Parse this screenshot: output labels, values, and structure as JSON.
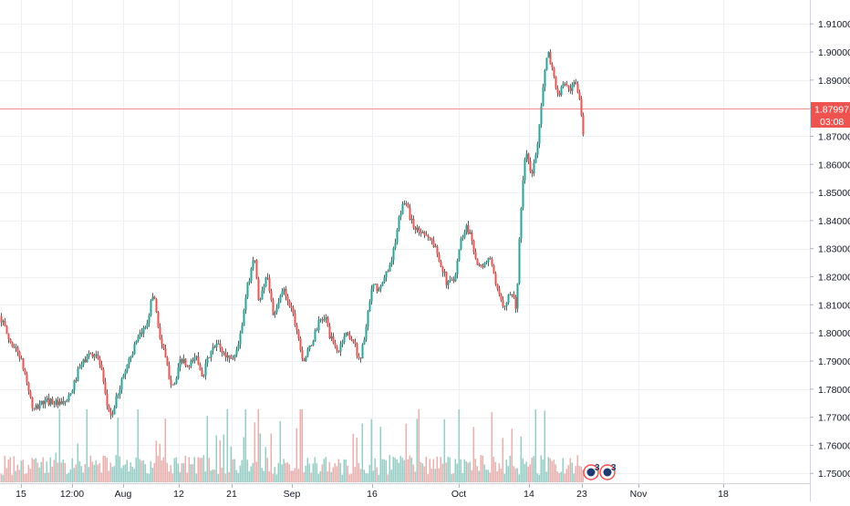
{
  "chart_data": {
    "type": "candlestick",
    "x_ticks": [
      "15",
      "12:00",
      "Aug",
      "12",
      "21",
      "Sep",
      "16",
      "Oct",
      "14",
      "23",
      "Nov",
      "18"
    ],
    "y_ticks": [
      "1.75000",
      "1.76000",
      "1.77000",
      "1.78000",
      "1.79000",
      "1.80000",
      "1.81000",
      "1.82000",
      "1.83000",
      "1.84000",
      "1.85000",
      "1.86000",
      "1.87000",
      "1.88000",
      "1.89000",
      "1.90000",
      "1.91000"
    ],
    "ylim": [
      1.7465,
      1.9185
    ],
    "price_line": {
      "value": 1.87997,
      "label": "1.87997",
      "countdown": "03:08"
    },
    "event_markers": [
      {
        "count": "3"
      },
      {
        "count": "3"
      }
    ],
    "grid": true,
    "colors": {
      "up": "#26a69a",
      "down": "#ef5350",
      "wick": "#5d606b",
      "volume_up": "#7fcfc4",
      "volume_down": "#f3a3a0",
      "price_line": "#ef5350",
      "grid": "#eef0f3",
      "axis_text": "#131722"
    },
    "anchors": [
      [
        0,
        1.806
      ],
      [
        10,
        1.797
      ],
      [
        20,
        1.793
      ],
      [
        28,
        1.784
      ],
      [
        36,
        1.772
      ],
      [
        44,
        1.775
      ],
      [
        56,
        1.776
      ],
      [
        66,
        1.774
      ],
      [
        76,
        1.777
      ],
      [
        86,
        1.787
      ],
      [
        96,
        1.792
      ],
      [
        104,
        1.793
      ],
      [
        110,
        1.788
      ],
      [
        116,
        1.775
      ],
      [
        122,
        1.77
      ],
      [
        130,
        1.78
      ],
      [
        140,
        1.79
      ],
      [
        150,
        1.797
      ],
      [
        160,
        1.803
      ],
      [
        168,
        1.815
      ],
      [
        174,
        1.8
      ],
      [
        180,
        1.792
      ],
      [
        186,
        1.783
      ],
      [
        192,
        1.782
      ],
      [
        198,
        1.791
      ],
      [
        206,
        1.787
      ],
      [
        214,
        1.792
      ],
      [
        222,
        1.785
      ],
      [
        230,
        1.793
      ],
      [
        238,
        1.796
      ],
      [
        246,
        1.792
      ],
      [
        256,
        1.791
      ],
      [
        264,
        1.8
      ],
      [
        270,
        1.815
      ],
      [
        278,
        1.828
      ],
      [
        284,
        1.81
      ],
      [
        292,
        1.822
      ],
      [
        300,
        1.805
      ],
      [
        310,
        1.816
      ],
      [
        320,
        1.808
      ],
      [
        326,
        1.8
      ],
      [
        332,
        1.79
      ],
      [
        340,
        1.795
      ],
      [
        348,
        1.803
      ],
      [
        356,
        1.806
      ],
      [
        362,
        1.798
      ],
      [
        370,
        1.793
      ],
      [
        378,
        1.8
      ],
      [
        386,
        1.798
      ],
      [
        394,
        1.79
      ],
      [
        400,
        1.8
      ],
      [
        408,
        1.817
      ],
      [
        416,
        1.815
      ],
      [
        424,
        1.822
      ],
      [
        432,
        1.83
      ],
      [
        438,
        1.842
      ],
      [
        444,
        1.848
      ],
      [
        450,
        1.84
      ],
      [
        458,
        1.836
      ],
      [
        466,
        1.836
      ],
      [
        474,
        1.832
      ],
      [
        482,
        1.826
      ],
      [
        490,
        1.817
      ],
      [
        498,
        1.82
      ],
      [
        504,
        1.832
      ],
      [
        510,
        1.838
      ],
      [
        516,
        1.835
      ],
      [
        522,
        1.825
      ],
      [
        528,
        1.822
      ],
      [
        536,
        1.828
      ],
      [
        544,
        1.815
      ],
      [
        552,
        1.81
      ],
      [
        560,
        1.815
      ],
      [
        566,
        1.809
      ],
      [
        570,
        1.84
      ],
      [
        576,
        1.866
      ],
      [
        582,
        1.855
      ],
      [
        588,
        1.865
      ],
      [
        594,
        1.885
      ],
      [
        600,
        1.9
      ],
      [
        606,
        1.893
      ],
      [
        612,
        1.883
      ],
      [
        618,
        1.89
      ],
      [
        624,
        1.885
      ],
      [
        630,
        1.889
      ],
      [
        636,
        1.882
      ],
      [
        640,
        1.866
      ]
    ]
  }
}
